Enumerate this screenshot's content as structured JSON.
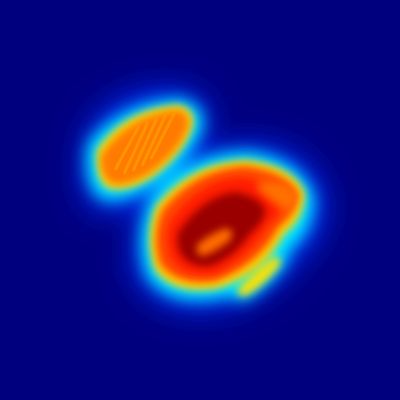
{
  "image": {
    "kind": "heatmap",
    "colormap": "jet",
    "background_color": "#00007f"
  },
  "chart_data": {
    "type": "heatmap",
    "colormap": "jet",
    "axes_visible": false,
    "colorbar_visible": false,
    "text": []
  }
}
